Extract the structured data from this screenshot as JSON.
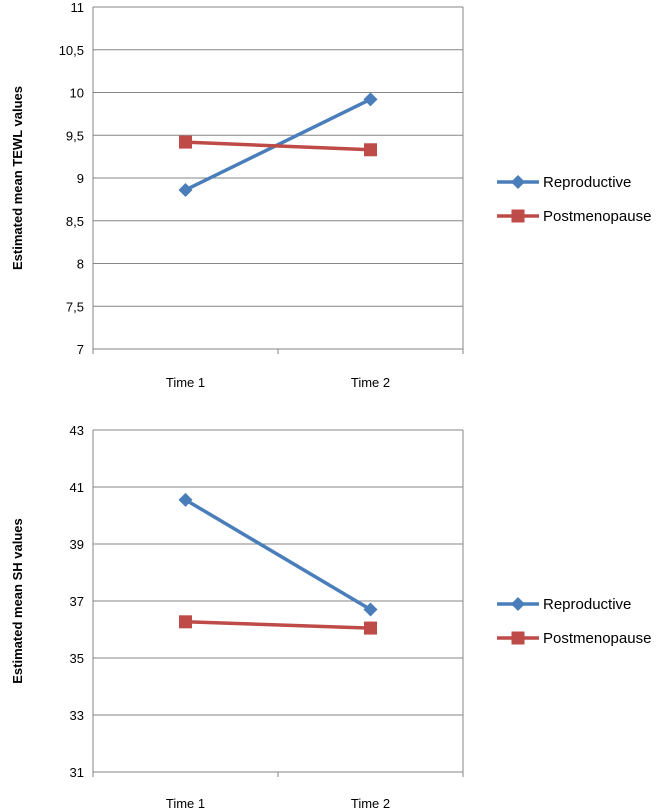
{
  "chart_data": [
    {
      "type": "line",
      "title": "",
      "xlabel": "",
      "ylabel": "Estimated mean TEWL values",
      "categories": [
        "Time 1",
        "Time 2"
      ],
      "ylim": [
        7,
        11
      ],
      "yticks": [
        "7",
        "7,5",
        "8",
        "8,5",
        "9",
        "9,5",
        "10",
        "10,5",
        "11"
      ],
      "ytick_values": [
        7,
        7.5,
        8,
        8.5,
        9,
        9.5,
        10,
        10.5,
        11
      ],
      "grid": "horizontal",
      "legend_position": "right",
      "series": [
        {
          "name": "Reproductive",
          "values": [
            8.86,
            9.92
          ],
          "color": "#4a7ebb",
          "marker": "diamond"
        },
        {
          "name": "Postmenopause",
          "values": [
            9.42,
            9.33
          ],
          "color": "#be4b48",
          "marker": "square"
        }
      ]
    },
    {
      "type": "line",
      "title": "",
      "xlabel": "",
      "ylabel": "Estimated mean SH values",
      "categories": [
        "Time 1",
        "Time 2"
      ],
      "ylim": [
        31,
        43
      ],
      "yticks": [
        "31",
        "33",
        "35",
        "37",
        "39",
        "41",
        "43"
      ],
      "ytick_values": [
        31,
        33,
        35,
        37,
        39,
        41,
        43
      ],
      "grid": "horizontal",
      "legend_position": "right",
      "series": [
        {
          "name": "Reproductive",
          "values": [
            40.55,
            36.7
          ],
          "color": "#4a7ebb",
          "marker": "diamond"
        },
        {
          "name": "Postmenopause",
          "values": [
            36.27,
            36.05
          ],
          "color": "#be4b48",
          "marker": "square"
        }
      ]
    }
  ]
}
